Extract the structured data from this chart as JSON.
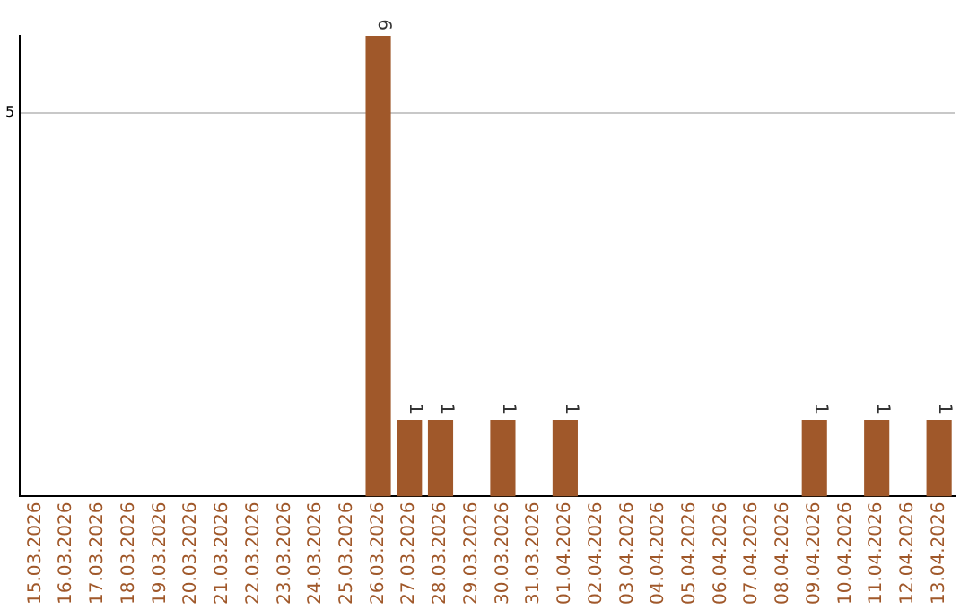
{
  "chart_data": {
    "type": "bar",
    "categories": [
      "15.03.2026",
      "16.03.2026",
      "17.03.2026",
      "18.03.2026",
      "19.03.2026",
      "20.03.2026",
      "21.03.2026",
      "22.03.2026",
      "23.03.2026",
      "24.03.2026",
      "25.03.2026",
      "26.03.2026",
      "27.03.2026",
      "28.03.2026",
      "29.03.2026",
      "30.03.2026",
      "31.03.2026",
      "01.04.2026",
      "02.04.2026",
      "03.04.2026",
      "04.04.2026",
      "05.04.2026",
      "06.04.2026",
      "07.04.2026",
      "08.04.2026",
      "09.04.2026",
      "10.04.2026",
      "11.04.2026",
      "12.04.2026",
      "13.04.2026"
    ],
    "values": [
      0,
      0,
      0,
      0,
      0,
      0,
      0,
      0,
      0,
      0,
      0,
      6,
      1,
      1,
      0,
      1,
      0,
      1,
      0,
      0,
      0,
      0,
      0,
      0,
      0,
      1,
      0,
      1,
      0,
      1
    ],
    "value_labels": [
      null,
      null,
      null,
      null,
      null,
      null,
      null,
      null,
      null,
      null,
      null,
      "6",
      "1",
      "1",
      null,
      "1",
      null,
      "1",
      null,
      null,
      null,
      null,
      null,
      null,
      null,
      "1",
      null,
      "1",
      null,
      "1"
    ],
    "color": "#a0582a",
    "ylim": [
      0,
      6
    ],
    "yticks": [
      5
    ],
    "grid": "y",
    "legend": false
  }
}
